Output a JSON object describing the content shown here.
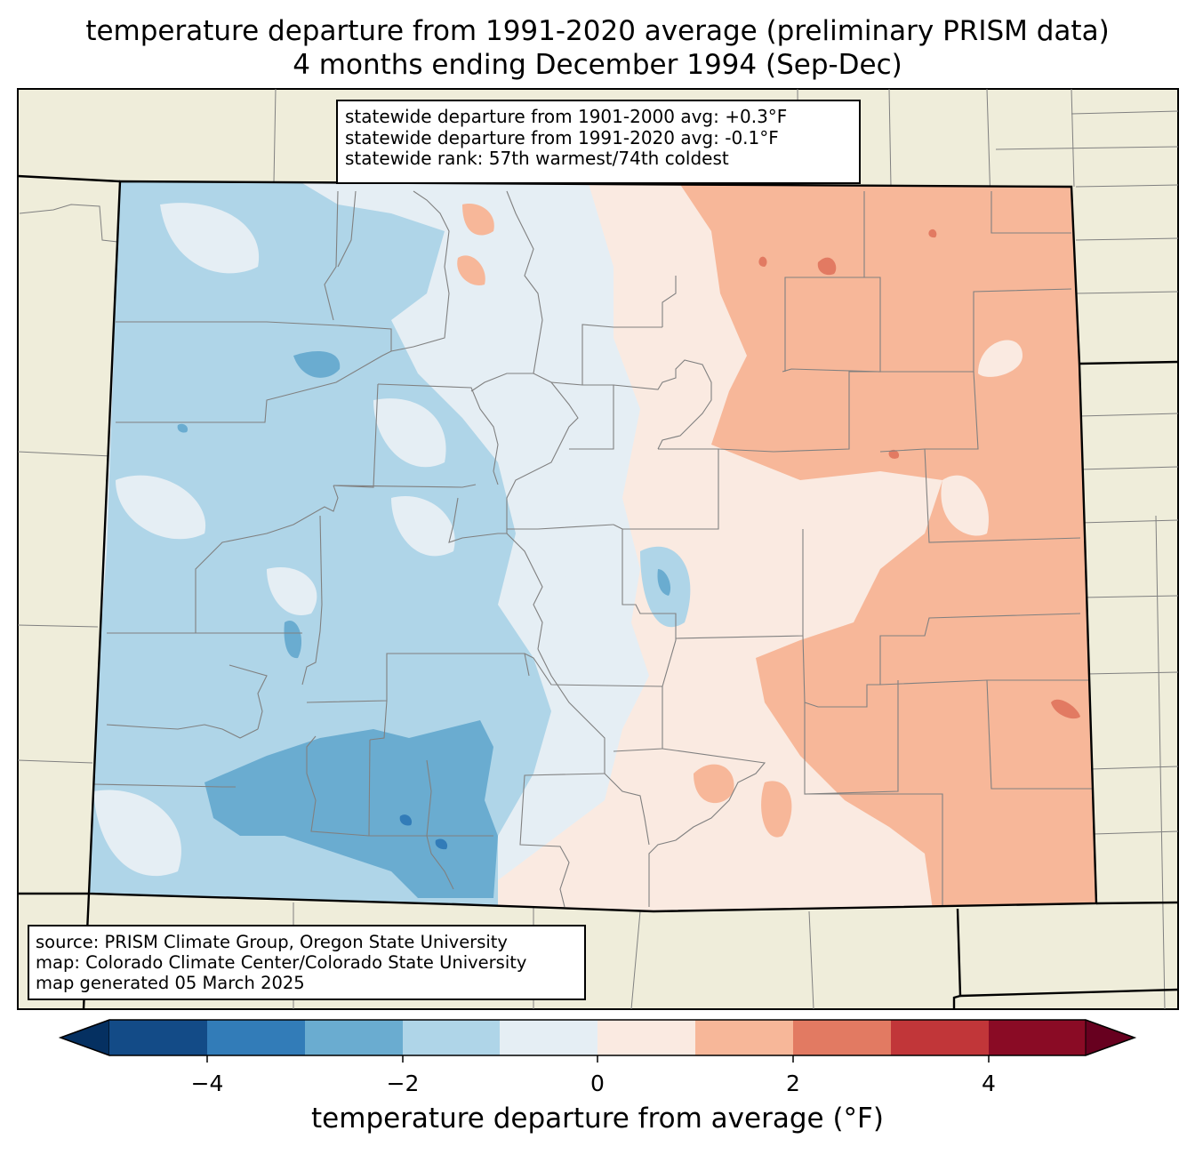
{
  "title": {
    "line1": "temperature departure from 1991-2020 average (preliminary PRISM data)",
    "line2": "4 months ending December 1994 (Sep-Dec)"
  },
  "stats": {
    "line1": "statewide departure from 1901-2000 avg: +0.3°F",
    "line2": "statewide departure from 1991-2020 avg: -0.1°F",
    "line3": "statewide rank: 57th warmest/74th coldest"
  },
  "source": {
    "line1": "source: PRISM Climate Group, Oregon State University",
    "line2": "map: Colorado Climate Center/Colorado State University",
    "line3": "map generated 05 March 2025"
  },
  "colorbar": {
    "label": "temperature departure from average (°F)",
    "ticks": [
      "−4",
      "−2",
      "0",
      "2",
      "4"
    ],
    "bins": [
      -5,
      -4,
      -3,
      -2,
      -1,
      0,
      1,
      2,
      3,
      4,
      5
    ],
    "colors": [
      "#053061",
      "#134b87",
      "#327cb8",
      "#6aacd0",
      "#afd5e8",
      "#e5eef4",
      "#faeae1",
      "#f7b799",
      "#e27a62",
      "#c13639",
      "#8a0b25",
      "#67001f"
    ]
  },
  "map_colors": {
    "land": "#efedda",
    "state_border": "#000000",
    "county_border": "#808080"
  }
}
